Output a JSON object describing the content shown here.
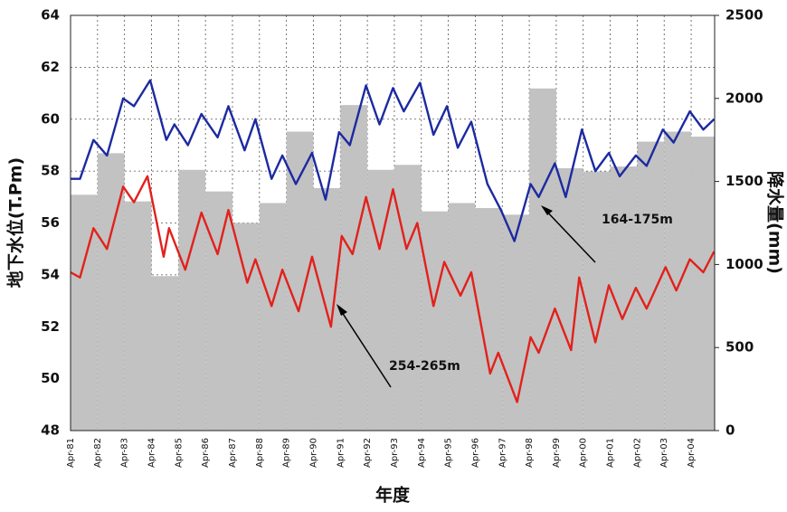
{
  "chart_data": {
    "type": "line",
    "y_label": "地下水位(T.Pm)",
    "y2_label": "降水量(mm)",
    "x_label": "年度",
    "xlim": [
      1981.25,
      2005.12
    ],
    "xticks": [
      {
        "value": 1981.25,
        "label": "Apr-81"
      },
      {
        "value": 1982.25,
        "label": "Apr-82"
      },
      {
        "value": 1983.25,
        "label": "Apr-83"
      },
      {
        "value": 1984.25,
        "label": "Apr-84"
      },
      {
        "value": 1985.25,
        "label": "Apr-85"
      },
      {
        "value": 1986.25,
        "label": "Apr-86"
      },
      {
        "value": 1987.25,
        "label": "Apr-87"
      },
      {
        "value": 1988.25,
        "label": "Apr-88"
      },
      {
        "value": 1989.25,
        "label": "Apr-89"
      },
      {
        "value": 1990.25,
        "label": "Apr-90"
      },
      {
        "value": 1991.25,
        "label": "Apr-91"
      },
      {
        "value": 1992.25,
        "label": "Apr-92"
      },
      {
        "value": 1993.25,
        "label": "Apr-93"
      },
      {
        "value": 1994.25,
        "label": "Apr-94"
      },
      {
        "value": 1995.25,
        "label": "Apr-95"
      },
      {
        "value": 1996.25,
        "label": "Apr-96"
      },
      {
        "value": 1997.25,
        "label": "Apr-97"
      },
      {
        "value": 1998.25,
        "label": "Apr-98"
      },
      {
        "value": 1999.25,
        "label": "Apr-99"
      },
      {
        "value": 2000.25,
        "label": "Apr-00"
      },
      {
        "value": 2001.25,
        "label": "Apr-01"
      },
      {
        "value": 2002.25,
        "label": "Apr-02"
      },
      {
        "value": 2003.25,
        "label": "Apr-03"
      },
      {
        "value": 2004.25,
        "label": "Apr-04"
      }
    ],
    "ylim": [
      48,
      64
    ],
    "yticks": [
      48,
      50,
      52,
      54,
      56,
      58,
      60,
      62,
      64
    ],
    "y2lim": [
      0,
      2500
    ],
    "y2ticks": [
      0,
      500,
      1000,
      1500,
      2000,
      2500
    ],
    "grid": true,
    "series": [
      {
        "type": "bar",
        "axis": "y2",
        "color": "#c2c2c2",
        "x": [
          1981.25,
          1982.25,
          1983.25,
          1984.25,
          1985.25,
          1986.25,
          1987.25,
          1988.25,
          1989.25,
          1990.25,
          1991.25,
          1992.25,
          1993.25,
          1994.25,
          1995.25,
          1996.25,
          1997.25,
          1998.25,
          1999.25,
          2000.25,
          2001.25,
          2002.25,
          2003.25,
          2004.25
        ],
        "values": [
          1420,
          1670,
          1380,
          930,
          1570,
          1440,
          1250,
          1370,
          1800,
          1460,
          1960,
          1570,
          1600,
          1320,
          1370,
          1340,
          1300,
          2060,
          1580,
          1560,
          1590,
          1740,
          1800,
          1770
        ]
      },
      {
        "type": "line",
        "name": "164-175m",
        "color": "#1c2aa0",
        "x": [
          1981.25,
          1981.6,
          1982.1,
          1982.6,
          1983.2,
          1983.6,
          1984.2,
          1984.8,
          1985.1,
          1985.6,
          1986.1,
          1986.7,
          1987.1,
          1987.7,
          1988.1,
          1988.7,
          1989.1,
          1989.6,
          1990.2,
          1990.7,
          1991.2,
          1991.6,
          1992.2,
          1992.7,
          1993.2,
          1993.6,
          1994.2,
          1994.7,
          1995.2,
          1995.6,
          1996.1,
          1996.7,
          1997.2,
          1997.7,
          1998.3,
          1998.6,
          1999.2,
          1999.6,
          2000.2,
          2000.7,
          2001.2,
          2001.6,
          2002.2,
          2002.6,
          2003.2,
          2003.6,
          2004.2,
          2004.7,
          2005.1
        ],
        "values": [
          57.7,
          57.7,
          59.2,
          58.6,
          60.8,
          60.5,
          61.5,
          59.2,
          59.8,
          59.0,
          60.2,
          59.3,
          60.5,
          58.8,
          60.0,
          57.7,
          58.6,
          57.5,
          58.7,
          56.9,
          59.5,
          59.0,
          61.3,
          59.8,
          61.2,
          60.3,
          61.4,
          59.4,
          60.5,
          58.9,
          59.9,
          57.5,
          56.5,
          55.3,
          57.5,
          57.0,
          58.3,
          57.0,
          59.6,
          58.0,
          58.7,
          57.8,
          58.6,
          58.2,
          59.6,
          59.1,
          60.3,
          59.6,
          60.0
        ]
      },
      {
        "type": "line",
        "name": "254-265m",
        "color": "#e2211c",
        "x": [
          1981.25,
          1981.6,
          1982.1,
          1982.6,
          1983.2,
          1983.6,
          1984.1,
          1984.7,
          1984.9,
          1985.5,
          1986.1,
          1986.7,
          1987.1,
          1987.8,
          1988.1,
          1988.7,
          1989.1,
          1989.7,
          1990.2,
          1990.9,
          1991.3,
          1991.7,
          1992.2,
          1992.7,
          1993.2,
          1993.7,
          1994.1,
          1994.7,
          1995.1,
          1995.7,
          1996.1,
          1996.8,
          1997.1,
          1997.8,
          1998.3,
          1998.6,
          1999.2,
          1999.8,
          2000.1,
          2000.7,
          2001.2,
          2001.7,
          2002.2,
          2002.6,
          2003.3,
          2003.7,
          2004.2,
          2004.7,
          2005.1
        ],
        "values": [
          54.1,
          53.9,
          55.8,
          55.0,
          57.4,
          56.8,
          57.8,
          54.7,
          55.8,
          54.2,
          56.4,
          54.8,
          56.5,
          53.7,
          54.6,
          52.8,
          54.2,
          52.6,
          54.7,
          52.0,
          55.5,
          54.8,
          57.0,
          55.0,
          57.3,
          55.0,
          56.0,
          52.8,
          54.5,
          53.2,
          54.1,
          50.2,
          51.0,
          49.1,
          51.6,
          51.0,
          52.7,
          51.1,
          53.9,
          51.4,
          53.6,
          52.3,
          53.5,
          52.7,
          54.3,
          53.4,
          54.6,
          54.1,
          54.9
        ]
      }
    ]
  }
}
